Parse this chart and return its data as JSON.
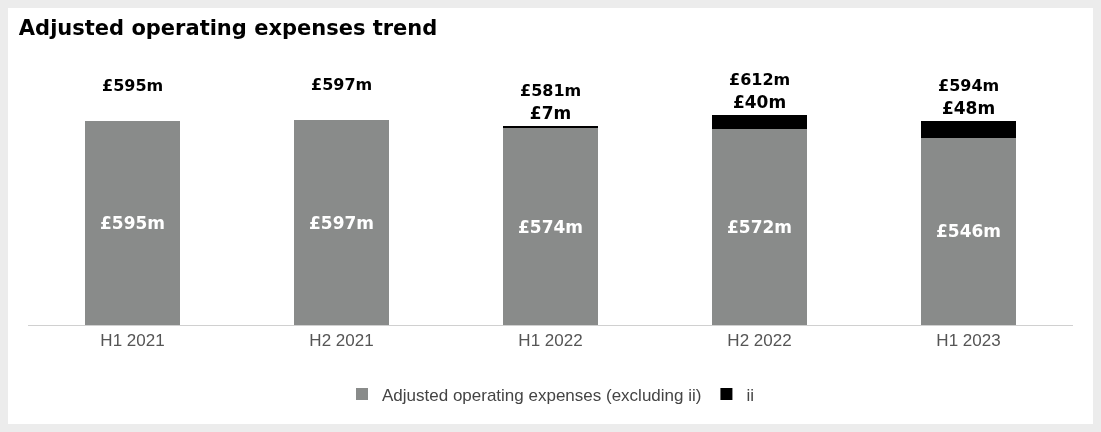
{
  "chart_data": {
    "type": "bar",
    "title": "Adjusted operating expenses trend",
    "categories": [
      "H1 2021",
      "H2 2021",
      "H1 2022",
      "H2 2022",
      "H1 2023"
    ],
    "stacked": true,
    "series": [
      {
        "name": "Adjusted operating expenses (excluding ii)",
        "color": "#898b8a",
        "values": [
          595,
          597,
          574,
          572,
          546
        ],
        "value_labels": [
          "£595m",
          "£597m",
          "£574m",
          "£572m",
          "£546m"
        ]
      },
      {
        "name": "ii",
        "color": "#000000",
        "values": [
          null,
          null,
          7,
          40,
          48
        ],
        "value_labels": [
          null,
          null,
          "£7m",
          "£40m",
          "£48m"
        ]
      }
    ],
    "totals": [
      "£595m",
      "£597m",
      "£581m",
      "£612m",
      "£594m"
    ],
    "tick_labels": "x",
    "grid": false,
    "legend": "bottom"
  }
}
